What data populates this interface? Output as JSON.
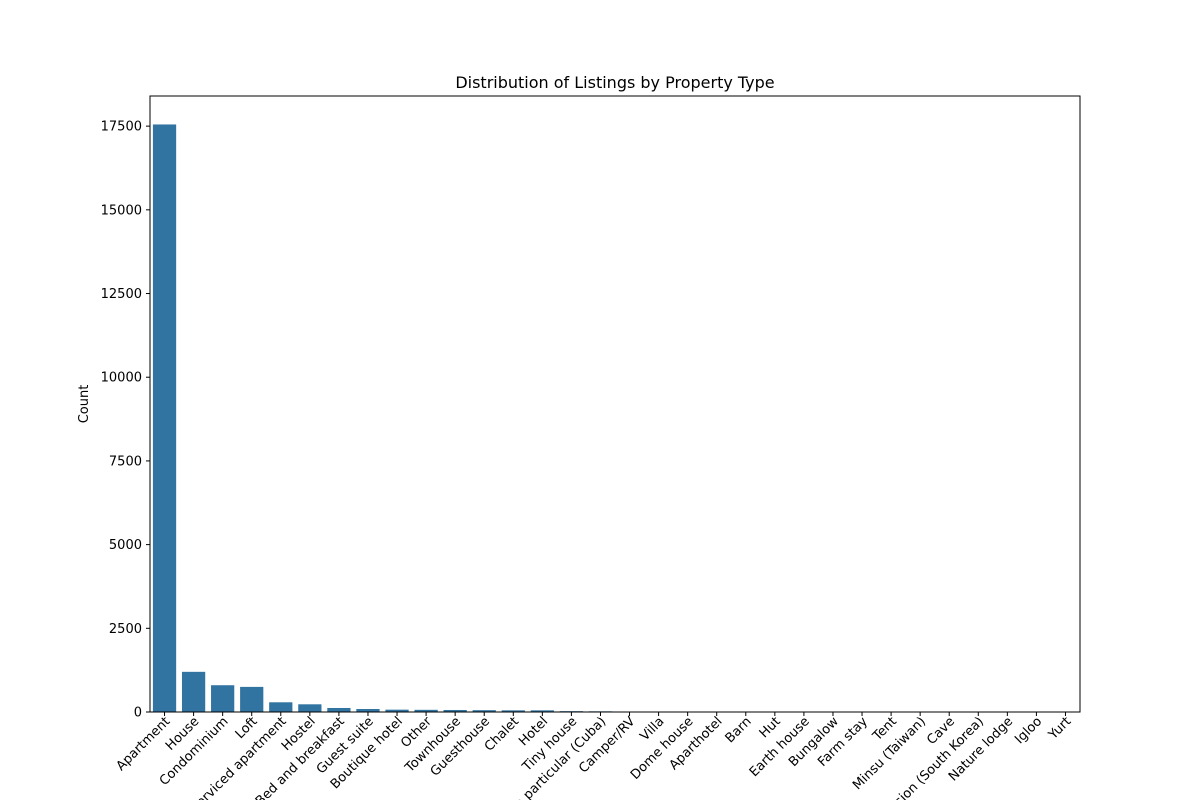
{
  "chart_data": {
    "type": "bar",
    "title": "Distribution of Listings by Property Type",
    "xlabel": "",
    "ylabel": "Count",
    "ylim": [
      0,
      18400
    ],
    "yticks": [
      0,
      2500,
      5000,
      7500,
      10000,
      12500,
      15000,
      17500
    ],
    "grid": false,
    "categories": [
      "Apartment",
      "House",
      "Condominium",
      "Loft",
      "Serviced apartment",
      "Hostel",
      "Bed and breakfast",
      "Guest suite",
      "Boutique hotel",
      "Other",
      "Townhouse",
      "Guesthouse",
      "Chalet",
      "Hotel",
      "Tiny house",
      "Casa particular (Cuba)",
      "Camper/RV",
      "Villa",
      "Dome house",
      "Aparthotel",
      "Barn",
      "Hut",
      "Earth house",
      "Bungalow",
      "Farm stay",
      "Tent",
      "Minsu (Taiwan)",
      "Cave",
      "Pension (South Korea)",
      "Nature lodge",
      "Igloo",
      "Yurt"
    ],
    "values": [
      17550,
      1200,
      800,
      750,
      290,
      230,
      120,
      90,
      70,
      65,
      60,
      55,
      50,
      50,
      25,
      20,
      15,
      5,
      5,
      4,
      3,
      3,
      3,
      2,
      2,
      2,
      1,
      1,
      1,
      1,
      1,
      1
    ],
    "colors": {
      "bar": "#3274a1",
      "axis": "#000000",
      "background": "#ffffff"
    }
  }
}
